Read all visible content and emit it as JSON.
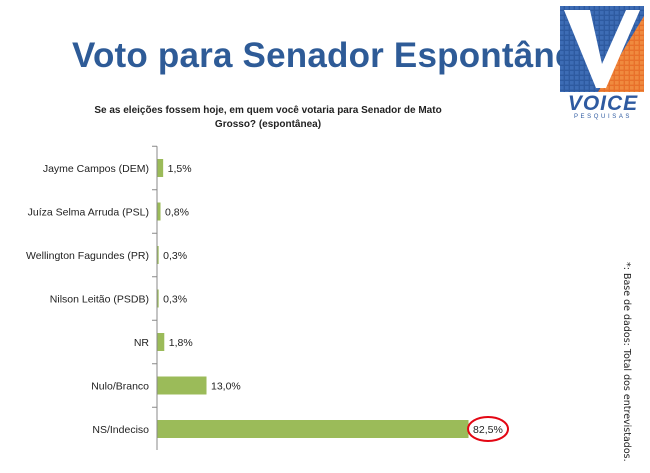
{
  "title": "Voto para Senador Espontânea",
  "brand": {
    "name": "VOICE",
    "tagline": "PESQUISAS",
    "color_blue": "#2e5aa0",
    "color_orange": "#e8702a"
  },
  "footnote": "*: Base de dados: Total dos entrevistados.",
  "colors": {
    "bar": "#9bbb59",
    "title": "#2e5b97",
    "highlight": "#e30613"
  },
  "chart_data": {
    "type": "bar",
    "orientation": "horizontal",
    "title": "Se as eleições fossem hoje, em quem você votaria para Senador de Mato Grosso? (espontânea)",
    "categories": [
      "Jayme Campos (DEM)",
      "Juíza Selma Arruda (PSL)",
      "Wellington Fagundes (PR)",
      "Nilson Leitão (PSDB)",
      "NR",
      "Nulo/Branco",
      "NS/Indeciso"
    ],
    "values": [
      1.5,
      0.8,
      0.3,
      0.3,
      1.8,
      13.0,
      82.5
    ],
    "value_labels": [
      "1,5%",
      "0,8%",
      "0,3%",
      "0,3%",
      "1,8%",
      "13,0%",
      "82,5%"
    ],
    "highlighted": "NS/Indeciso",
    "xlim": [
      0,
      100
    ],
    "grid": false,
    "legend": "none"
  }
}
